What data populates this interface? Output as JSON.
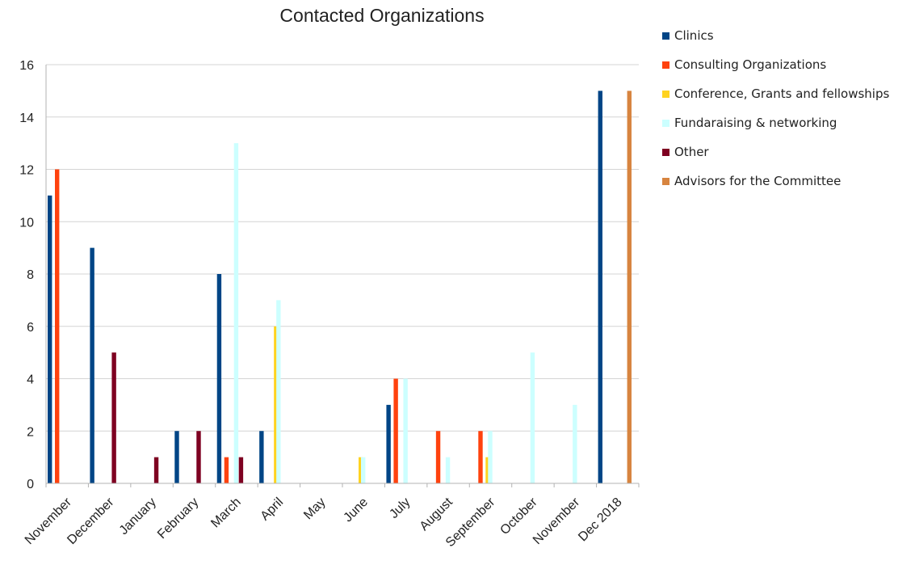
{
  "chart_data": {
    "type": "bar",
    "title": "Contacted Organizations",
    "xlabel": "",
    "ylabel": "",
    "ylim": [
      0,
      16
    ],
    "yticks": [
      0,
      2,
      4,
      6,
      8,
      10,
      12,
      14,
      16
    ],
    "grid": true,
    "legend_position": "right",
    "categories": [
      "November",
      "December",
      "January",
      "February",
      "March",
      "April",
      "May",
      "June",
      "July",
      "August",
      "September",
      "October",
      "November",
      "Dec 2018"
    ],
    "series": [
      {
        "name": "Clinics",
        "color": "#004586",
        "values": [
          11,
          9,
          0,
          2,
          8,
          2,
          0,
          0,
          3,
          0,
          0,
          0,
          0,
          15
        ]
      },
      {
        "name": "Consulting Organizations",
        "color": "#ff420e",
        "values": [
          12,
          0,
          0,
          0,
          1,
          0,
          0,
          0,
          4,
          2,
          2,
          0,
          0,
          0
        ]
      },
      {
        "name": "Conference, Grants and fellowships",
        "color": "#ffd320",
        "values": [
          0,
          0,
          0,
          0,
          0,
          6,
          0,
          1,
          0,
          0,
          1,
          0,
          0,
          0
        ]
      },
      {
        "name": "Fundaraising & networking",
        "color": "#ccffff",
        "values": [
          0,
          0,
          0,
          0,
          13,
          7,
          0,
          1,
          4,
          1,
          2,
          5,
          3,
          0
        ]
      },
      {
        "name": "Other",
        "color": "#7e0021",
        "values": [
          0,
          5,
          1,
          2,
          1,
          0,
          0,
          0,
          0,
          0,
          0,
          0,
          0,
          0
        ]
      },
      {
        "name": "Advisors for the Committee",
        "color": "#d7843f",
        "values": [
          0,
          0,
          0,
          0,
          0,
          0,
          0,
          0,
          0,
          0,
          0,
          0,
          0,
          15
        ]
      }
    ]
  }
}
